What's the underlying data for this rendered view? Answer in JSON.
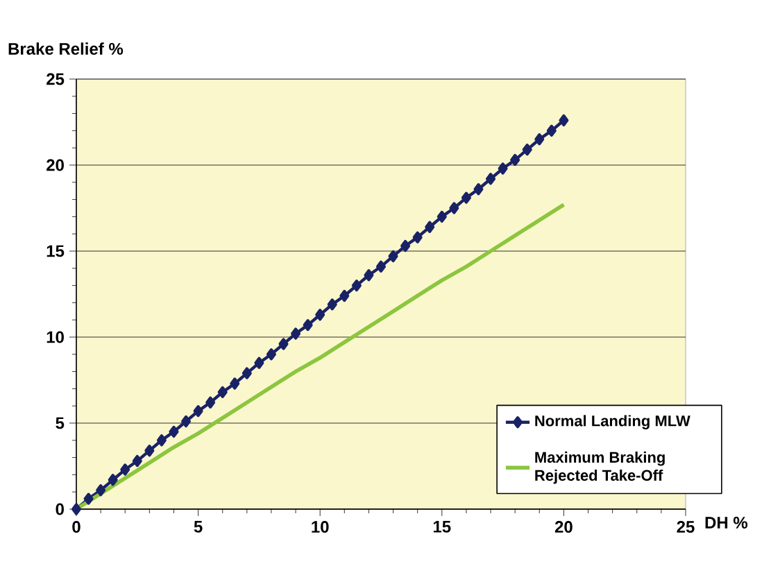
{
  "chart_data": {
    "type": "line",
    "xlabel": "DH %",
    "ylabel": "Brake Relief %",
    "xlim": [
      0,
      25
    ],
    "ylim": [
      0,
      25
    ],
    "xticks": [
      0,
      5,
      10,
      15,
      20,
      25
    ],
    "yticks": [
      0,
      5,
      10,
      15,
      20,
      25
    ],
    "grid": "y",
    "legend": "bottom right",
    "series": [
      {
        "name": "Normal Landing MLW",
        "color": "#1a2266",
        "marker": "diamond",
        "line_style": "solid",
        "x": [
          0,
          0.5,
          1,
          1.5,
          2,
          2.5,
          3,
          3.5,
          4,
          4.5,
          5,
          5.5,
          6,
          6.5,
          7,
          7.5,
          8,
          8.5,
          9,
          9.5,
          10,
          10.5,
          11,
          11.5,
          12,
          12.5,
          13,
          13.5,
          14,
          14.5,
          15,
          15.5,
          16,
          16.5,
          17,
          17.5,
          18,
          18.5,
          19,
          19.5,
          20
        ],
        "values": [
          0,
          0.6,
          1.1,
          1.7,
          2.3,
          2.8,
          3.4,
          4.0,
          4.5,
          5.1,
          5.7,
          6.2,
          6.8,
          7.3,
          7.9,
          8.5,
          9.0,
          9.6,
          10.2,
          10.7,
          11.3,
          11.9,
          12.4,
          13.0,
          13.6,
          14.1,
          14.7,
          15.3,
          15.8,
          16.4,
          17.0,
          17.5,
          18.1,
          18.6,
          19.2,
          19.8,
          20.3,
          20.9,
          21.5,
          22.0,
          22.6
        ]
      },
      {
        "name": "Maximum Braking Rejected Take-Off",
        "color": "#8cc63f",
        "marker": "none",
        "line_style": "solid",
        "x": [
          0,
          1,
          2,
          3,
          4,
          5,
          6,
          7,
          8,
          9,
          10,
          11,
          12,
          13,
          14,
          15,
          16,
          17,
          18,
          19,
          20
        ],
        "values": [
          0,
          0.9,
          1.8,
          2.7,
          3.6,
          4.4,
          5.3,
          6.2,
          7.1,
          8.0,
          8.8,
          9.7,
          10.6,
          11.5,
          12.4,
          13.3,
          14.1,
          15.0,
          15.9,
          16.8,
          17.7
        ]
      }
    ]
  }
}
